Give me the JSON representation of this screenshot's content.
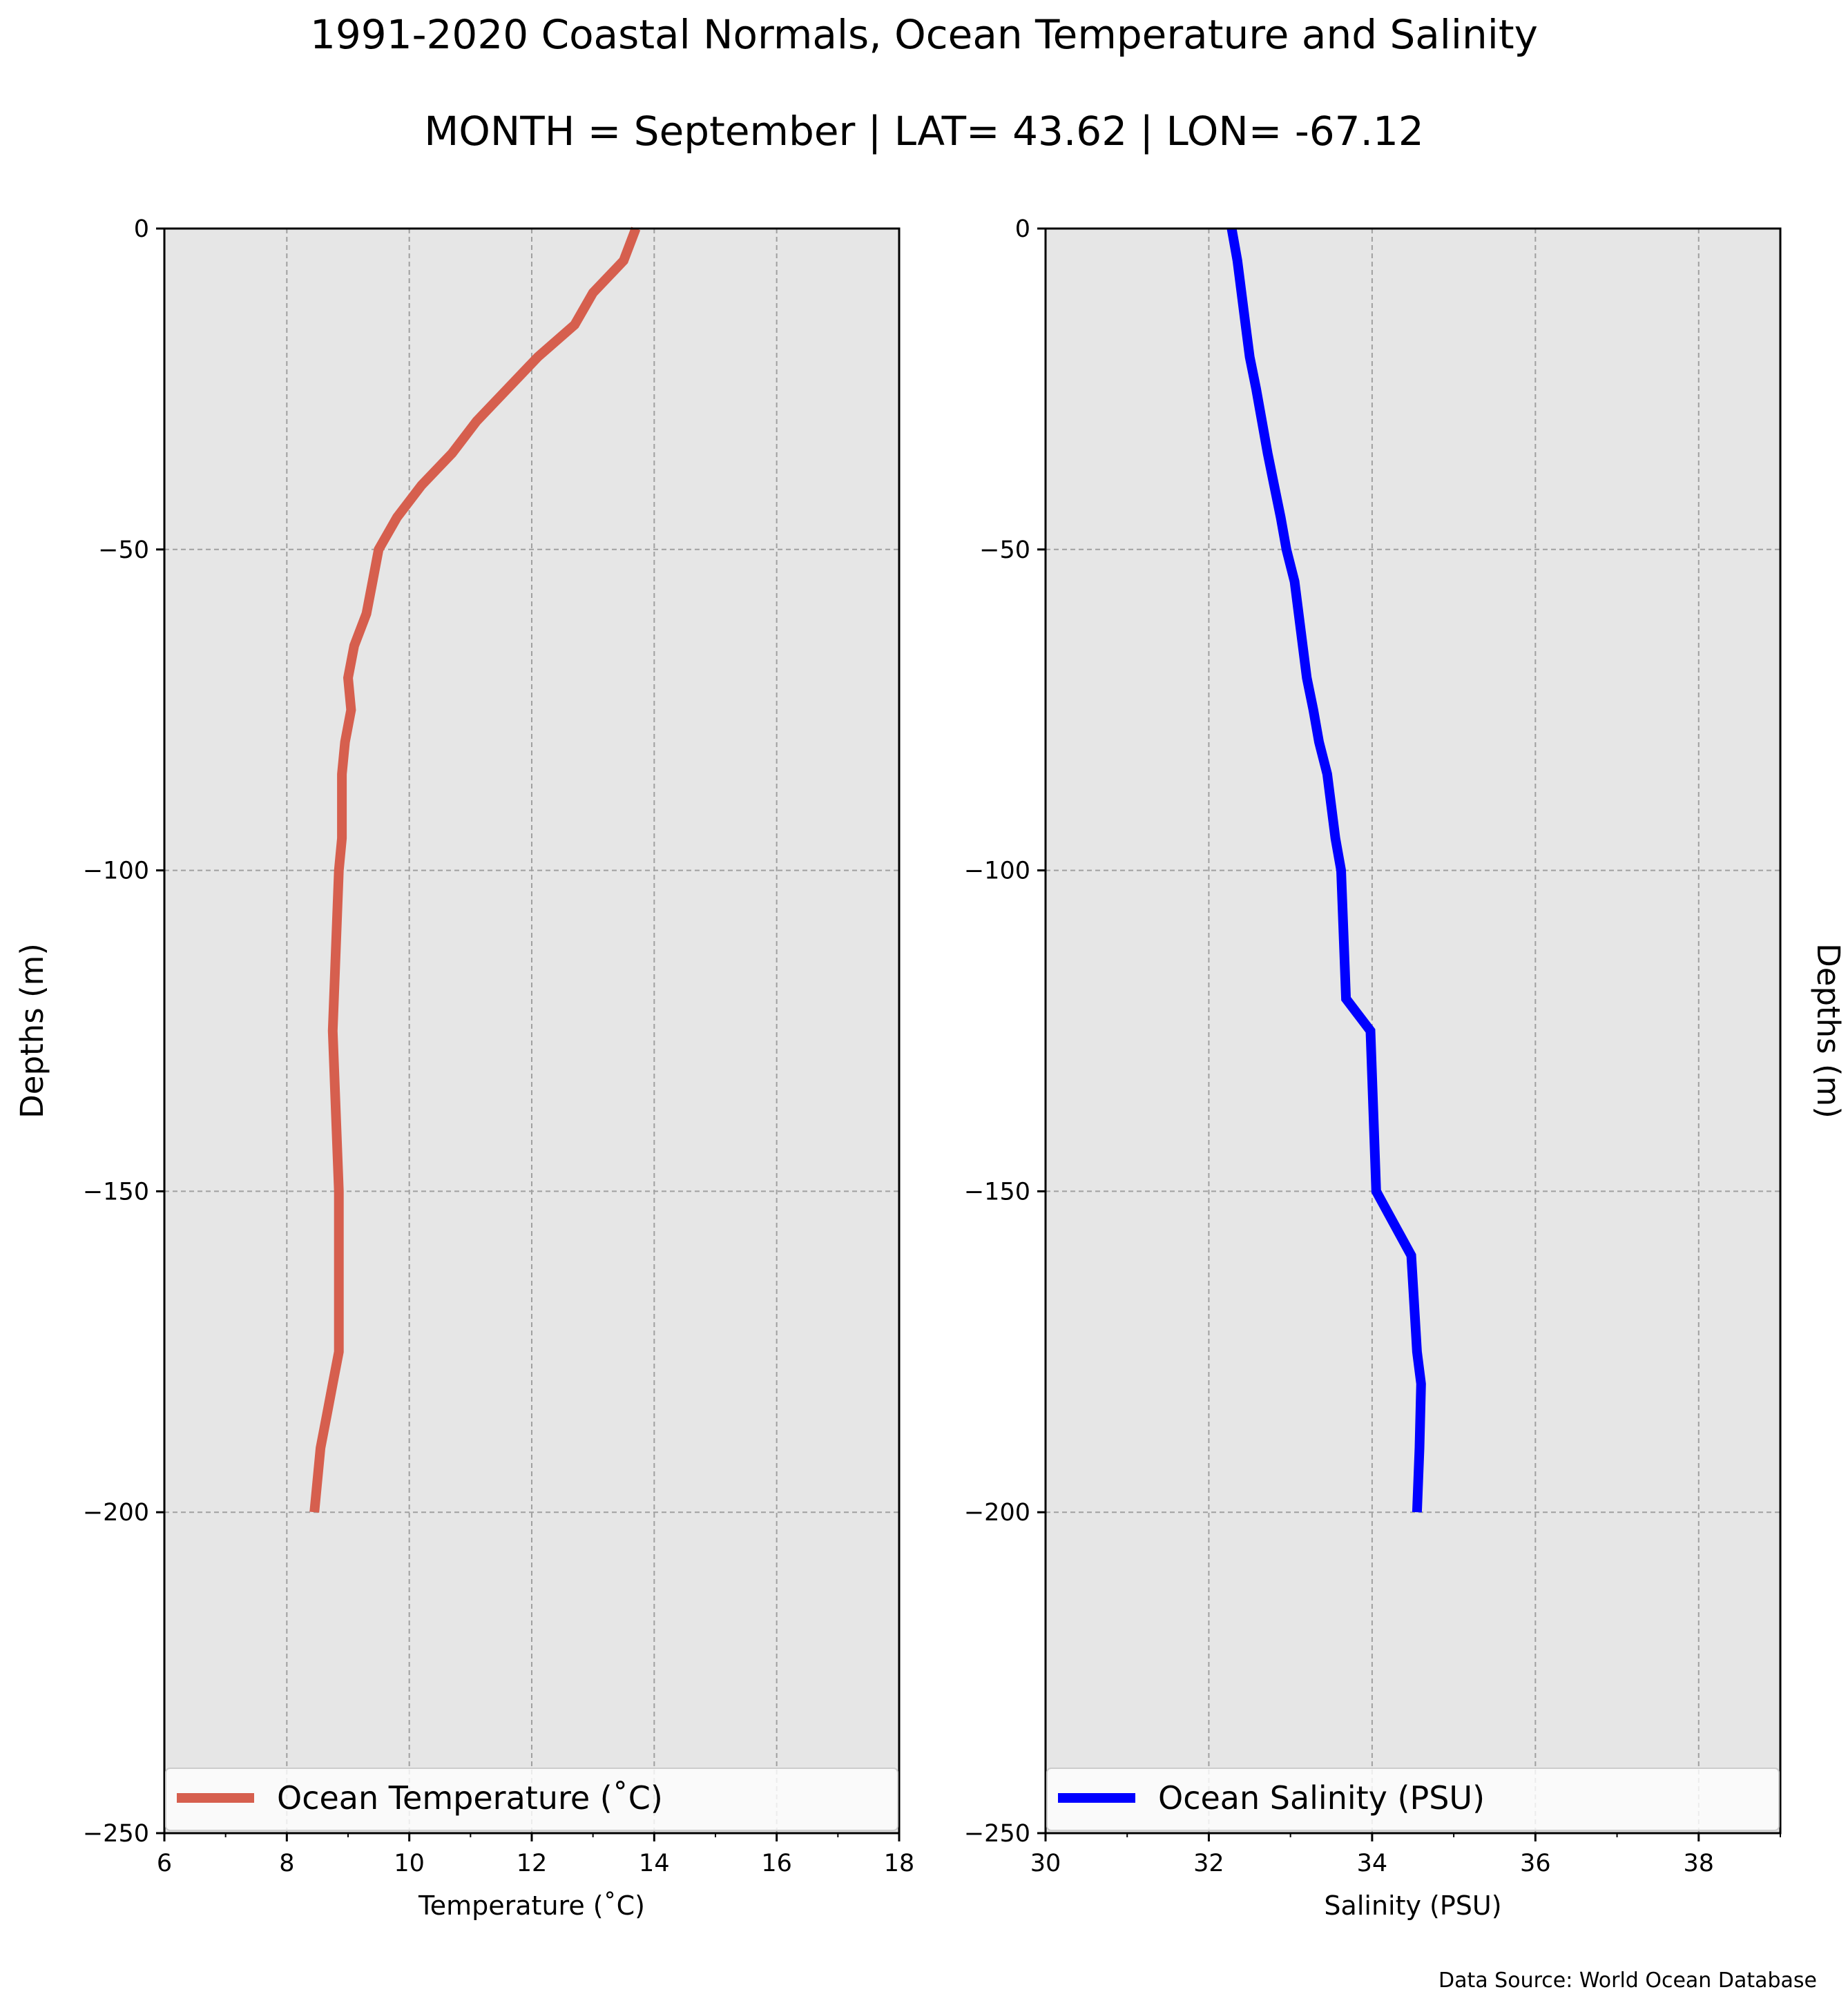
{
  "figure": {
    "title": "1991-2020 Coastal Normals, Ocean Temperature and Salinity",
    "subtitle": "MONTH = September | LAT= 43.62 | LON= -67.12",
    "source": "Data Source: World Ocean Database"
  },
  "colors": {
    "temperature_line": "#d65f4e",
    "salinity_line": "#0000ff",
    "axes_background": "#e6e6e6",
    "grid": "#a0a0a0"
  },
  "chart_data": [
    {
      "type": "line",
      "title": "",
      "xlabel": "Temperature ($^\\circ$C)",
      "xlabel_display": "Temperature (˚C)",
      "ylabel": "Depths (m)",
      "ylabel_position": "left",
      "xlim": [
        6,
        18
      ],
      "ylim": [
        -250,
        0
      ],
      "xticks": [
        6,
        8,
        10,
        12,
        14,
        16,
        18
      ],
      "xtick_labels": [
        "6",
        "8",
        "10",
        "12",
        "14",
        "16",
        "18"
      ],
      "yticks": [
        0,
        -50,
        -100,
        -150,
        -200,
        -250
      ],
      "ytick_labels": [
        "0",
        "−50",
        "−100",
        "−150",
        "−200",
        "−250"
      ],
      "grid": true,
      "legend": "lower center",
      "series": [
        {
          "name": "Ocean Temperature (˚C)",
          "color": "#d65f4e",
          "x": [
            13.7,
            13.5,
            13.0,
            12.7,
            12.1,
            11.6,
            11.1,
            10.7,
            10.2,
            9.8,
            9.5,
            9.4,
            9.3,
            9.1,
            9.0,
            9.05,
            8.95,
            8.9,
            8.9,
            8.85,
            8.75,
            8.85,
            8.85,
            8.85,
            8.75,
            8.65,
            8.55,
            8.45
          ],
          "y": [
            0,
            -5,
            -10,
            -15,
            -20,
            -25,
            -30,
            -35,
            -40,
            -45,
            -50,
            -55,
            -60,
            -65,
            -70,
            -75,
            -80,
            -85,
            -95,
            -100,
            -125,
            -150,
            -160,
            -175,
            -180,
            -185,
            -190,
            -200
          ]
        }
      ]
    },
    {
      "type": "line",
      "title": "",
      "xlabel": "Salinity (PSU)",
      "ylabel": "Depths (m)",
      "ylabel_position": "right",
      "xlim": [
        30,
        39
      ],
      "ylim": [
        -250,
        0
      ],
      "xticks": [
        30,
        32,
        34,
        36,
        38
      ],
      "xtick_labels": [
        "30",
        "32",
        "34",
        "36",
        "38"
      ],
      "yticks": [
        0,
        -50,
        -100,
        -150,
        -200,
        -250
      ],
      "ytick_labels": [
        "0",
        "−50",
        "−100",
        "−150",
        "−200",
        "−250"
      ],
      "grid": true,
      "legend": "lower center",
      "series": [
        {
          "name": "Ocean Salinity (PSU)",
          "color": "#0000ff",
          "x": [
            32.28,
            32.35,
            32.4,
            32.45,
            32.5,
            32.58,
            32.65,
            32.72,
            32.8,
            32.88,
            32.95,
            33.05,
            33.1,
            33.15,
            33.2,
            33.28,
            33.35,
            33.45,
            33.55,
            33.62,
            33.68,
            33.98,
            34.05,
            34.48,
            34.55,
            34.6,
            34.58,
            34.55
          ],
          "y": [
            0,
            -5,
            -10,
            -15,
            -20,
            -25,
            -30,
            -35,
            -40,
            -45,
            -50,
            -55,
            -60,
            -65,
            -70,
            -75,
            -80,
            -85,
            -95,
            -100,
            -120,
            -125,
            -150,
            -160,
            -175,
            -180,
            -190,
            -200
          ]
        }
      ]
    }
  ]
}
